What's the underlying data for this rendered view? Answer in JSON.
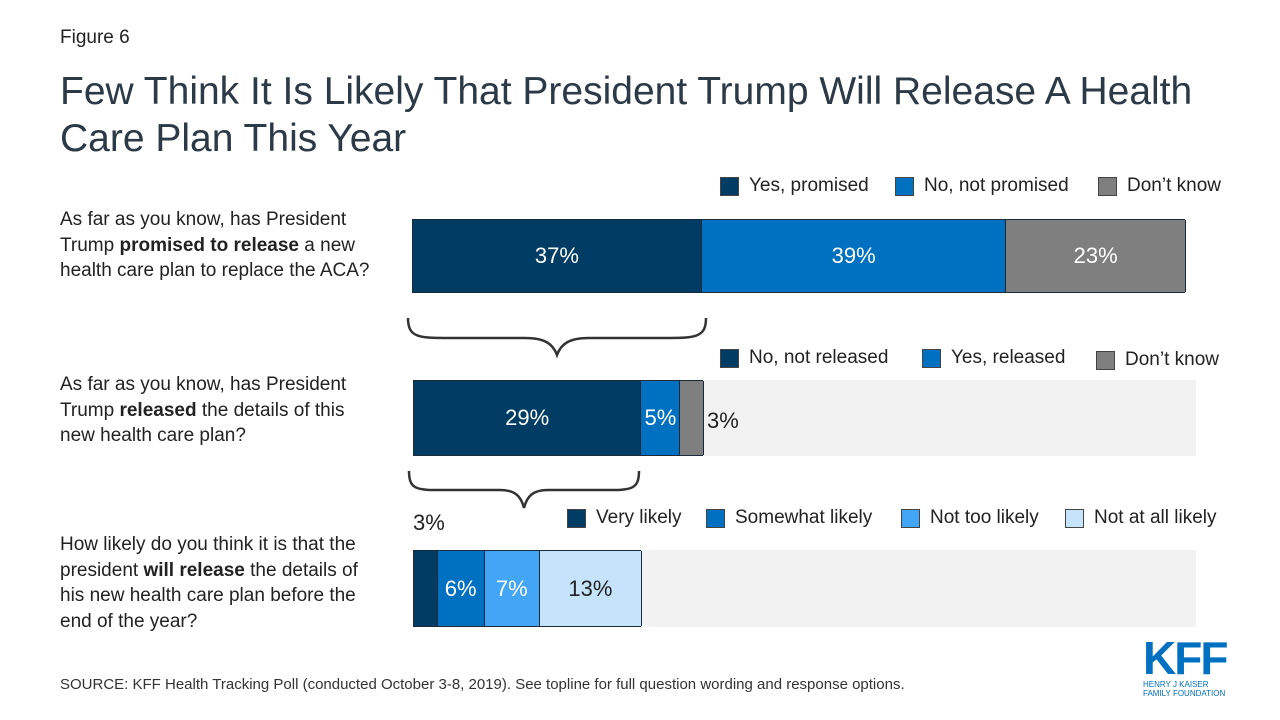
{
  "figure_label": "Figure 6",
  "title": "Few Think It Is Likely That President Trump Will Release A Health Care Plan This Year",
  "questions": [
    {
      "pre": "As far as you know, has President Trump ",
      "bold": "promised to release",
      "post": " a new health care plan to replace the ACA?"
    },
    {
      "pre": "As far as you know, has President Trump ",
      "bold": "released",
      "post": " the details of this new health care plan?"
    },
    {
      "pre": "How likely do you think it is that the president ",
      "bold": "will release",
      "post": " the details of his new health care plan before the end of the year?"
    }
  ],
  "colors": {
    "navy": "#003c64",
    "blue": "#0070c0",
    "gray": "#7f7f7f",
    "light_blue": "#42a5f5",
    "pale_blue": "#c5e4fb",
    "track": "#f2f2f2"
  },
  "chart_data": [
    {
      "type": "bar",
      "orientation": "horizontal",
      "stacked": true,
      "xlim": [
        0,
        100
      ],
      "categories": [
        "promised to release"
      ],
      "series": [
        {
          "name": "Yes, promised",
          "values": [
            37
          ],
          "label": "37%",
          "color": "#003c64"
        },
        {
          "name": "No, not promised",
          "values": [
            39
          ],
          "label": "39%",
          "color": "#0070c0"
        },
        {
          "name": "Don’t know",
          "values": [
            23
          ],
          "label": "23%",
          "color": "#7f7f7f"
        }
      ],
      "legend": "top-right"
    },
    {
      "type": "bar",
      "orientation": "horizontal",
      "stacked": true,
      "xlim": [
        0,
        100
      ],
      "categories": [
        "released"
      ],
      "series": [
        {
          "name": "No, not released",
          "values": [
            29
          ],
          "label": "29%",
          "color": "#003c64"
        },
        {
          "name": "Yes, released",
          "values": [
            5
          ],
          "label": "5%",
          "color": "#0070c0"
        },
        {
          "name": "Don’t know",
          "values": [
            3
          ],
          "label": "3%",
          "color": "#7f7f7f"
        }
      ],
      "legend": "top-right"
    },
    {
      "type": "bar",
      "orientation": "horizontal",
      "stacked": true,
      "xlim": [
        0,
        100
      ],
      "categories": [
        "will release"
      ],
      "series": [
        {
          "name": "Very likely",
          "values": [
            3
          ],
          "label": "3%",
          "color": "#003c64"
        },
        {
          "name": "Somewhat likely",
          "values": [
            6
          ],
          "label": "6%",
          "color": "#0070c0"
        },
        {
          "name": "Not too likely",
          "values": [
            7
          ],
          "label": "7%",
          "color": "#42a5f5"
        },
        {
          "name": "Not at all likely",
          "values": [
            13
          ],
          "label": "13%",
          "color": "#c5e4fb"
        }
      ],
      "legend": "top-right"
    }
  ],
  "source": "SOURCE: KFF Health Tracking Poll (conducted October 3-8, 2019). See topline for full question wording and response options.",
  "logo": {
    "mark": "KFF",
    "line1": "HENRY J KAISER",
    "line2": "FAMILY FOUNDATION"
  }
}
